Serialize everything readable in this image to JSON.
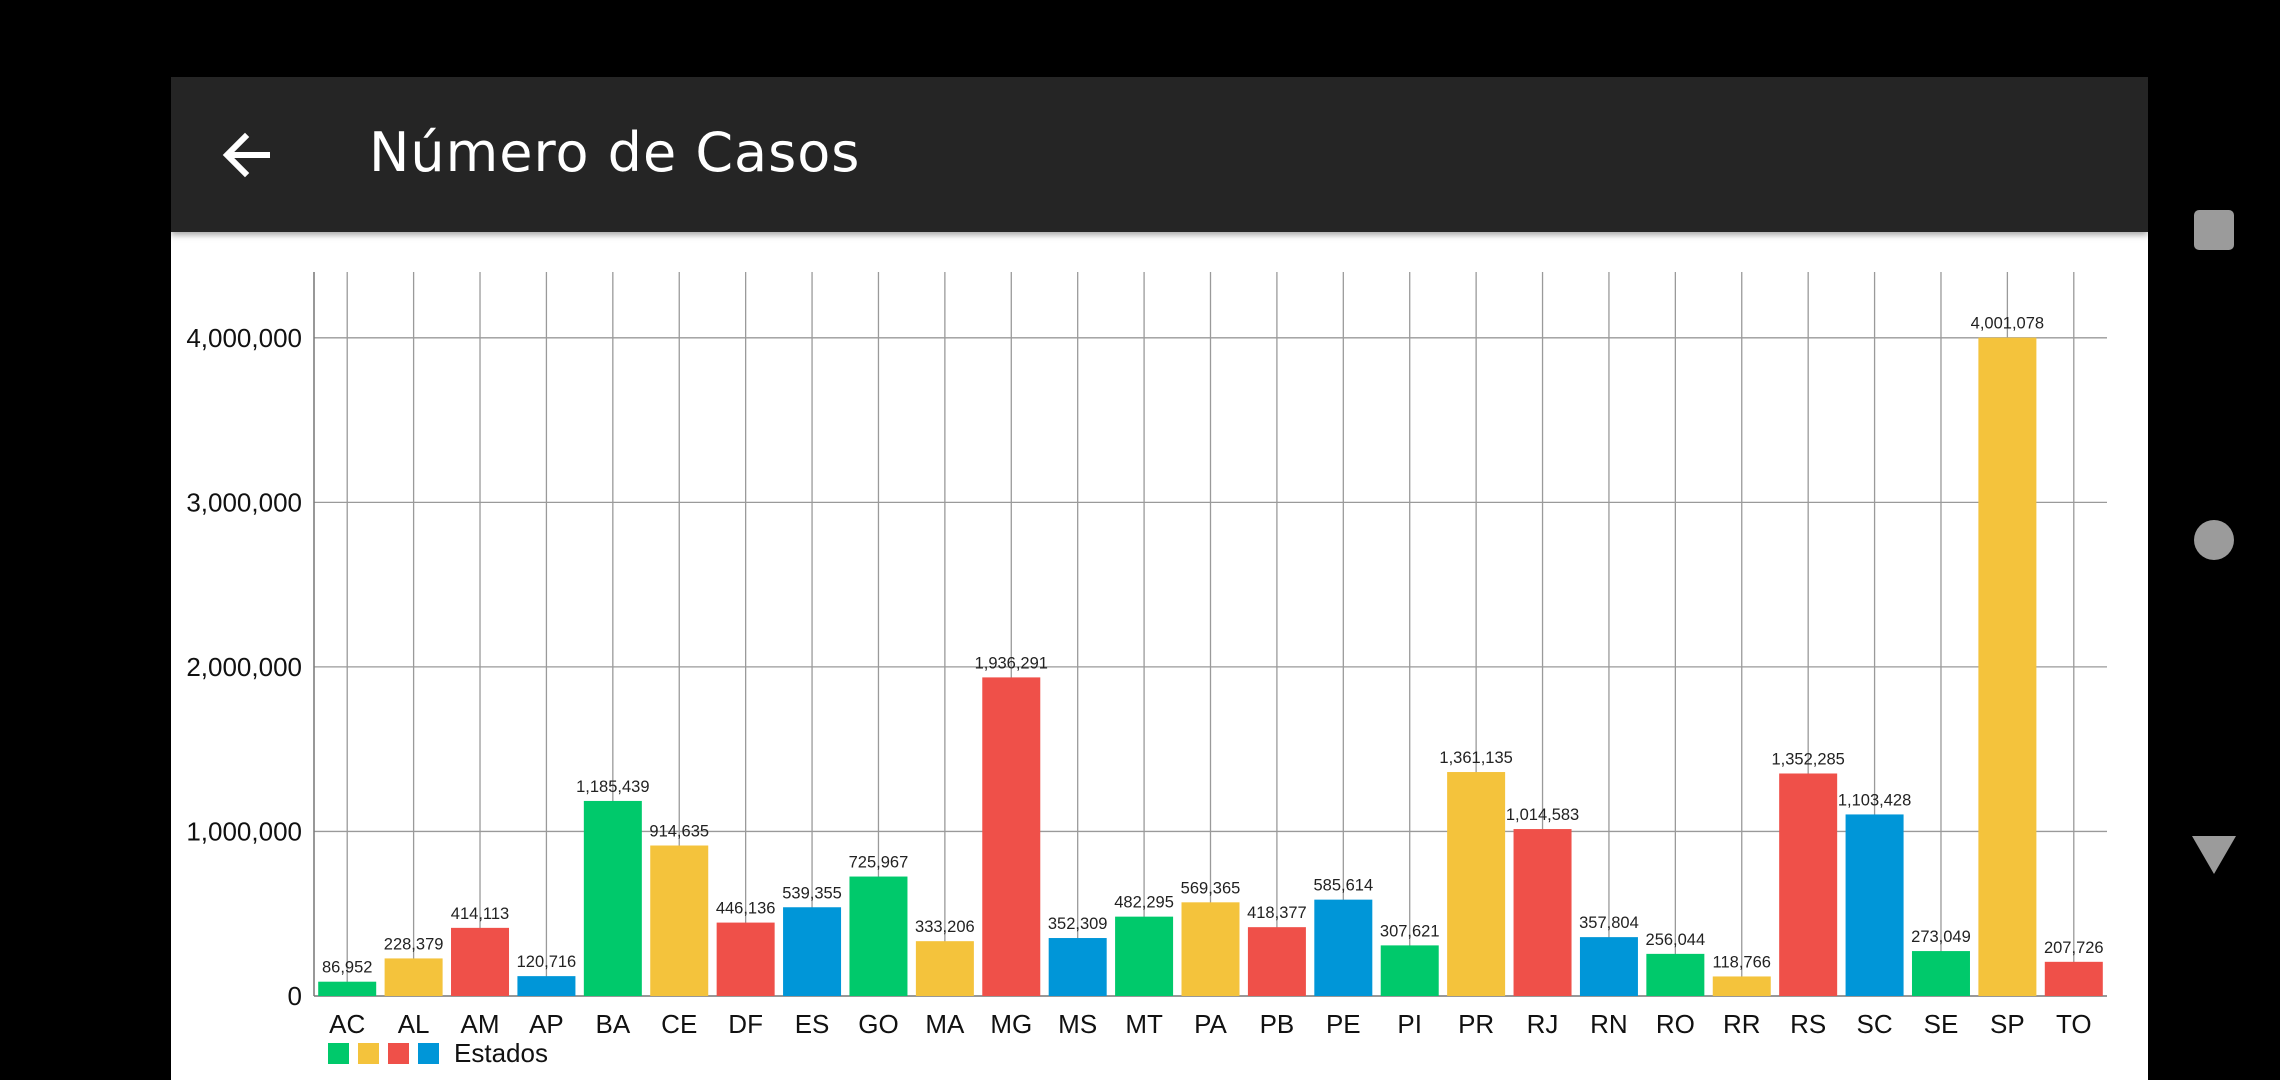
{
  "app": {
    "title": "Número de Casos"
  },
  "colors": {
    "green": "#00C96B",
    "yellow": "#F4C33C",
    "red": "#EF5049",
    "blue": "#0096D8",
    "appbar": "#252525"
  },
  "nav": {
    "icons": [
      "square-icon",
      "circle-icon",
      "triangle-icon"
    ]
  },
  "chart_data": {
    "type": "bar",
    "categories": [
      "AC",
      "AL",
      "AM",
      "AP",
      "BA",
      "CE",
      "DF",
      "ES",
      "GO",
      "MA",
      "MG",
      "MS",
      "MT",
      "PA",
      "PB",
      "PE",
      "PI",
      "PR",
      "RJ",
      "RN",
      "RO",
      "RR",
      "RS",
      "SC",
      "SE",
      "SP",
      "TO"
    ],
    "values": [
      86952,
      228379,
      414113,
      120716,
      1185439,
      914635,
      446136,
      539355,
      725967,
      333206,
      1936291,
      352309,
      482295,
      569365,
      418377,
      585614,
      307621,
      1361135,
      1014583,
      357804,
      256044,
      118766,
      1352285,
      1103428,
      273049,
      4001078,
      207726
    ],
    "value_labels": [
      "86,952",
      "228,379",
      "414,113",
      "120,716",
      "1,185,439",
      "914,635",
      "446,136",
      "539,355",
      "725,967",
      "333,206",
      "1,936,291",
      "352,309",
      "482,295",
      "569,365",
      "418,377",
      "585,614",
      "307,621",
      "1,361,135",
      "1,014,583",
      "357,804",
      "256,044",
      "118,766",
      "1,352,285",
      "1,103,428",
      "273,049",
      "4,001,078",
      "207,726"
    ],
    "bar_colors": [
      "#00C96B",
      "#F4C33C",
      "#EF5049",
      "#0096D8",
      "#00C96B",
      "#F4C33C",
      "#EF5049",
      "#0096D8",
      "#00C96B",
      "#F4C33C",
      "#EF5049",
      "#0096D8",
      "#00C96B",
      "#F4C33C",
      "#EF5049",
      "#0096D8",
      "#00C96B",
      "#F4C33C",
      "#EF5049",
      "#0096D8",
      "#00C96B",
      "#F4C33C",
      "#EF5049",
      "#0096D8",
      "#00C96B",
      "#F4C33C",
      "#EF5049"
    ],
    "y_ticks": [
      0,
      1000000,
      2000000,
      3000000,
      4000000
    ],
    "y_tick_labels": [
      "0",
      "1,000,000",
      "2,000,000",
      "3,000,000",
      "4,000,000"
    ],
    "ylim": [
      0,
      4400000
    ],
    "grid": true,
    "legend": {
      "label": "Estados",
      "placement": "bottom-left",
      "swatches": [
        "#00C96B",
        "#F4C33C",
        "#EF5049",
        "#0096D8"
      ]
    }
  }
}
